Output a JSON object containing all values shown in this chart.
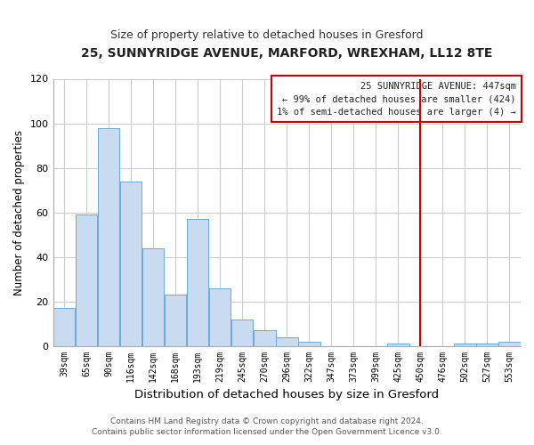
{
  "title": "25, SUNNYRIDGE AVENUE, MARFORD, WREXHAM, LL12 8TE",
  "subtitle": "Size of property relative to detached houses in Gresford",
  "xlabel": "Distribution of detached houses by size in Gresford",
  "ylabel": "Number of detached properties",
  "bin_labels": [
    "39sqm",
    "65sqm",
    "90sqm",
    "116sqm",
    "142sqm",
    "168sqm",
    "193sqm",
    "219sqm",
    "245sqm",
    "270sqm",
    "296sqm",
    "322sqm",
    "347sqm",
    "373sqm",
    "399sqm",
    "425sqm",
    "450sqm",
    "476sqm",
    "502sqm",
    "527sqm",
    "553sqm"
  ],
  "bar_heights": [
    17,
    59,
    98,
    74,
    44,
    23,
    57,
    26,
    12,
    7,
    4,
    2,
    0,
    0,
    0,
    1,
    0,
    0,
    1,
    1,
    2
  ],
  "bar_color": "#c8dbf0",
  "bar_edge_color": "#6aaad4",
  "vline_x_index": 16,
  "vline_color": "#cc0000",
  "legend_title": "25 SUNNYRIDGE AVENUE: 447sqm",
  "legend_line1": "← 99% of detached houses are smaller (424)",
  "legend_line2": "1% of semi-detached houses are larger (4) →",
  "legend_box_color": "#cc0000",
  "ylim": [
    0,
    120
  ],
  "yticks": [
    0,
    20,
    40,
    60,
    80,
    100,
    120
  ],
  "footer_line1": "Contains HM Land Registry data © Crown copyright and database right 2024.",
  "footer_line2": "Contains public sector information licensed under the Open Government Licence v3.0.",
  "figure_bg": "#ffffff",
  "axes_bg": "#ffffff",
  "grid_color": "#cccccc"
}
